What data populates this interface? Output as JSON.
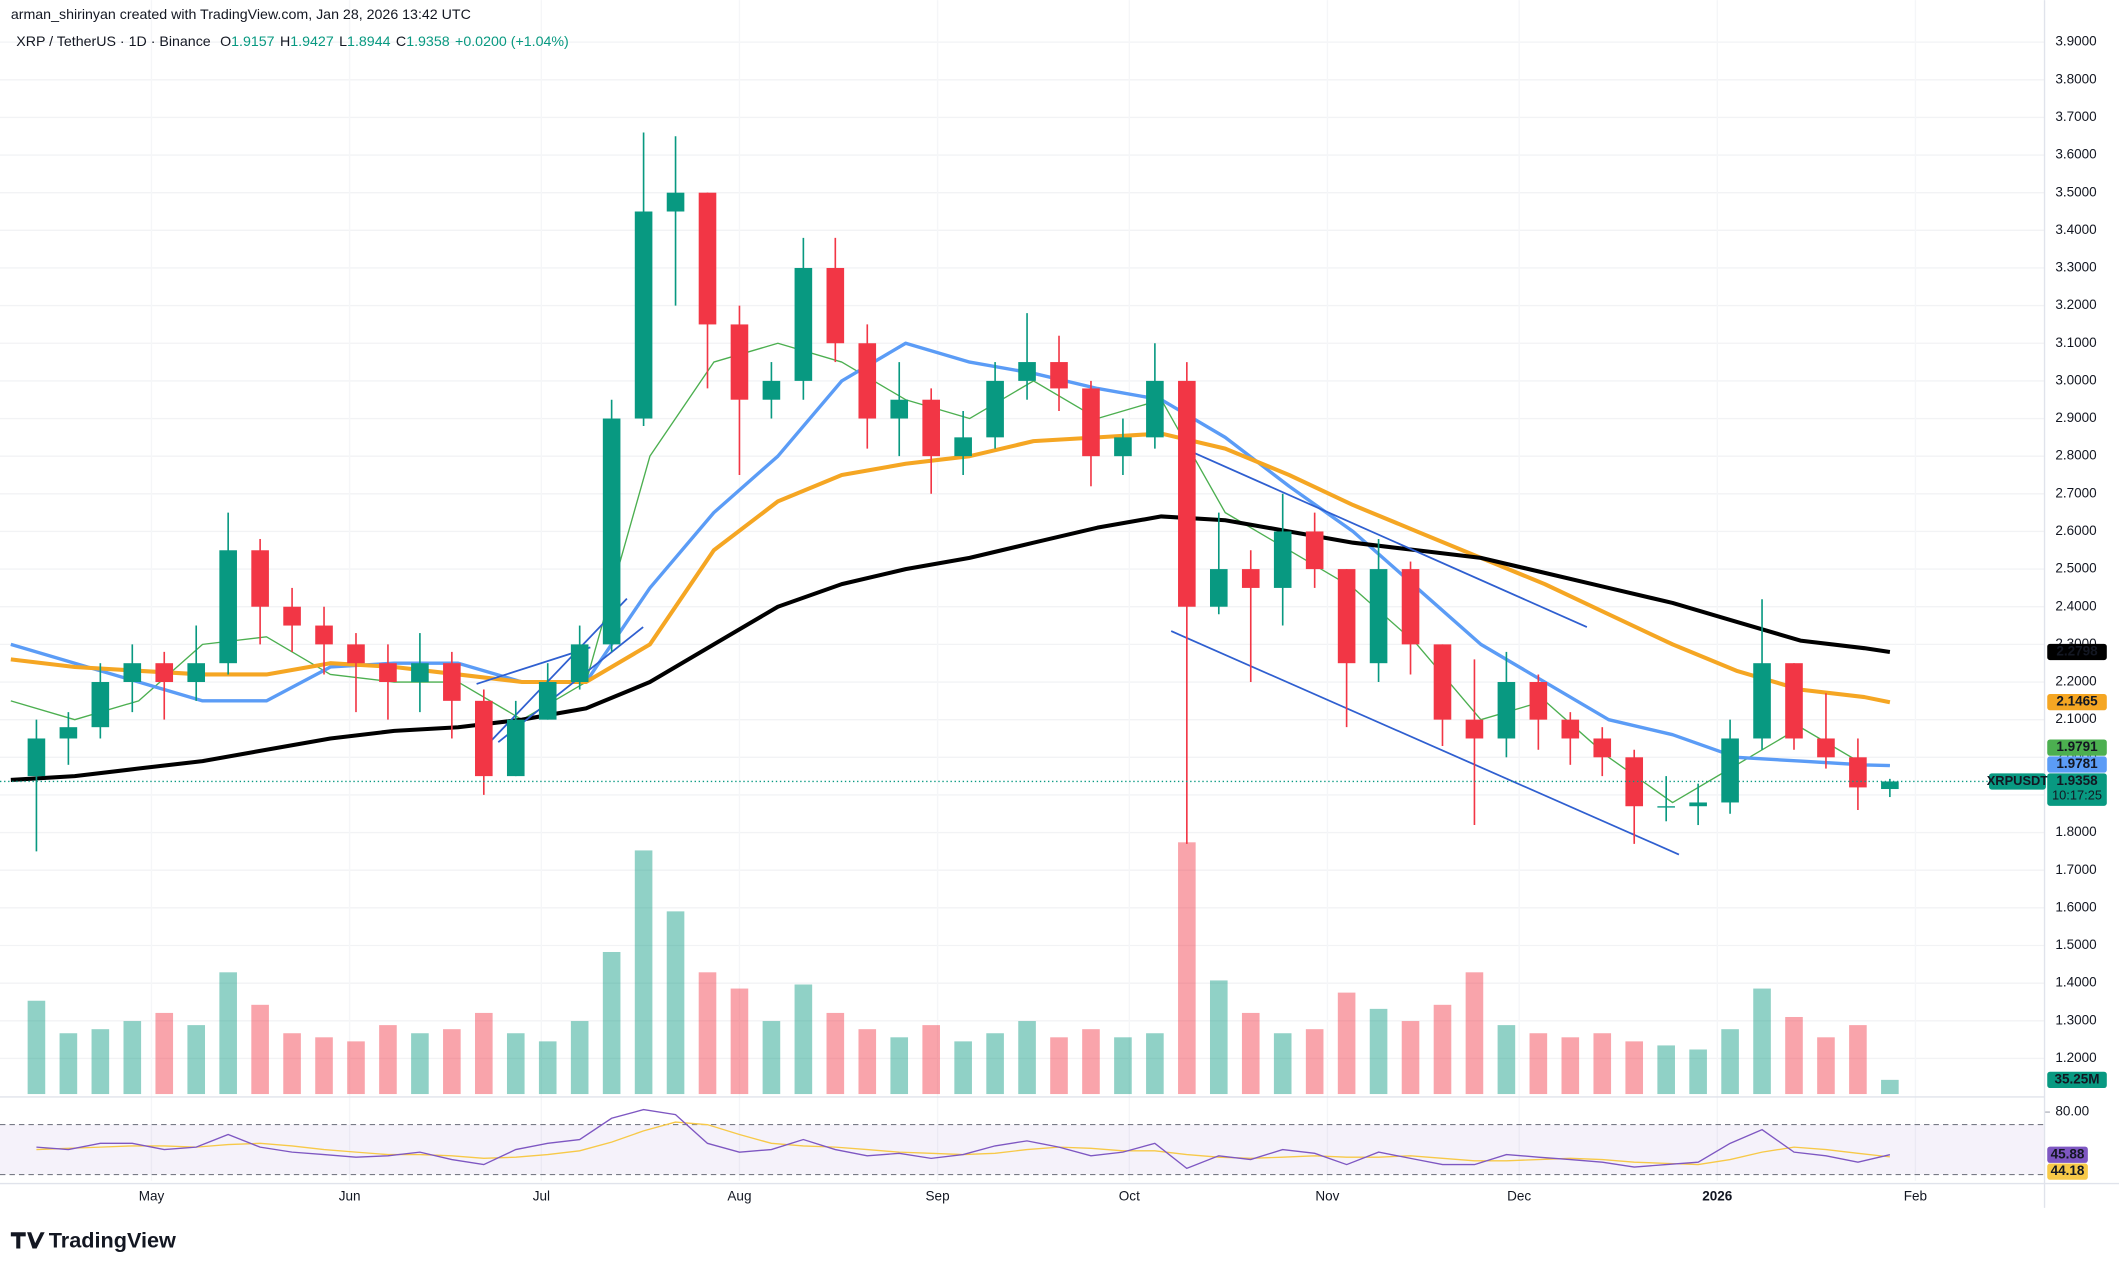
{
  "header": {
    "author_line": "arman_shirinyan created with TradingView.com, Jan 28, 2026 13:42 UTC",
    "symbol": "XRP / TetherUS · 1D · Binance",
    "ohlc": [
      {
        "label": "O",
        "value": 1.9157
      },
      {
        "label": "H",
        "value": 1.9427
      },
      {
        "label": "L",
        "value": 1.8944
      },
      {
        "label": "C",
        "value": 1.9358
      }
    ],
    "change": "+0.0200 (+1.04%)"
  },
  "chart_data": {
    "type": "candlestick",
    "grid": true,
    "up_color": "#089981",
    "down_color": "#f23645",
    "x": [
      4,
      9,
      14,
      19,
      24,
      29,
      34,
      39,
      44,
      49,
      54,
      59,
      64,
      69,
      74,
      79,
      84,
      89,
      94,
      99,
      104,
      109,
      114,
      119,
      124,
      129,
      134,
      139,
      144,
      149,
      154,
      159,
      164,
      169,
      174,
      179,
      184,
      189,
      194,
      199,
      204,
      209,
      214,
      219,
      224,
      229,
      234,
      239,
      244,
      249,
      254,
      259,
      264,
      269,
      274,
      279,
      284,
      289,
      294
    ],
    "xlim": [
      -1.7,
      318.2
    ],
    "xticks": [
      {
        "value": 22,
        "label": "May"
      },
      {
        "value": 53,
        "label": "Jun"
      },
      {
        "value": 83,
        "label": "Jul"
      },
      {
        "value": 114,
        "label": "Aug"
      },
      {
        "value": 145,
        "label": "Sep"
      },
      {
        "value": 175,
        "label": "Oct"
      },
      {
        "value": 206,
        "label": "Nov"
      },
      {
        "value": 236,
        "label": "Dec"
      },
      {
        "value": 267,
        "label": "2026"
      },
      {
        "value": 298,
        "label": "Feb"
      }
    ],
    "ylim": [
      1.105,
      4.0115
    ],
    "yticks": [
      {
        "value": 1.2,
        "label": "1.2000"
      },
      {
        "value": 1.3,
        "label": "1.3000"
      },
      {
        "value": 1.4,
        "label": "1.4000"
      },
      {
        "value": 1.5,
        "label": "1.5000"
      },
      {
        "value": 1.6,
        "label": "1.6000"
      },
      {
        "value": 1.7,
        "label": "1.7000"
      },
      {
        "value": 1.8,
        "label": "1.8000"
      },
      {
        "value": 1.9,
        "label": "1.9000"
      },
      {
        "value": 2.0,
        "label": "2.0000"
      },
      {
        "value": 2.1,
        "label": "2.1000"
      },
      {
        "value": 2.2,
        "label": "2.2000"
      },
      {
        "value": 2.3,
        "label": "2.3000"
      },
      {
        "value": 2.4,
        "label": "2.4000"
      },
      {
        "value": 2.5,
        "label": "2.5000"
      },
      {
        "value": 2.6,
        "label": "2.6000"
      },
      {
        "value": 2.7,
        "label": "2.7000"
      },
      {
        "value": 2.8,
        "label": "2.8000"
      },
      {
        "value": 2.9,
        "label": "2.9000"
      },
      {
        "value": 3.0,
        "label": "3.0000"
      },
      {
        "value": 3.1,
        "label": "3.1000"
      },
      {
        "value": 3.2,
        "label": "3.2000"
      },
      {
        "value": 3.3,
        "label": "3.3000"
      },
      {
        "value": 3.4,
        "label": "3.4000"
      },
      {
        "value": 3.5,
        "label": "3.5000"
      },
      {
        "value": 3.6,
        "label": "3.6000"
      },
      {
        "value": 3.7,
        "label": "3.7000"
      },
      {
        "value": 3.8,
        "label": "3.8000"
      },
      {
        "value": 3.9,
        "label": "3.9000"
      }
    ],
    "open": [
      1.95,
      2.05,
      2.08,
      2.2,
      2.25,
      2.2,
      2.25,
      2.55,
      2.4,
      2.35,
      2.3,
      2.25,
      2.2,
      2.25,
      2.15,
      1.95,
      2.1,
      2.2,
      2.3,
      2.9,
      3.45,
      3.5,
      3.15,
      2.95,
      3.0,
      3.3,
      3.1,
      2.9,
      2.95,
      2.8,
      2.85,
      3.0,
      3.05,
      2.98,
      2.8,
      2.85,
      3.0,
      2.4,
      2.5,
      2.45,
      2.6,
      2.5,
      2.25,
      2.5,
      2.3,
      2.1,
      2.05,
      2.2,
      2.1,
      2.05,
      2.0,
      1.87,
      1.87,
      1.88,
      2.05,
      2.25,
      2.05,
      2.0,
      1.9157
    ],
    "high": [
      2.1,
      2.12,
      2.25,
      2.3,
      2.28,
      2.35,
      2.65,
      2.58,
      2.45,
      2.4,
      2.33,
      2.3,
      2.33,
      2.28,
      2.18,
      2.15,
      2.25,
      2.35,
      2.95,
      3.66,
      3.65,
      3.5,
      3.2,
      3.05,
      3.38,
      3.38,
      3.15,
      3.05,
      2.98,
      2.92,
      3.05,
      3.18,
      3.12,
      3.0,
      2.9,
      3.1,
      3.05,
      2.65,
      2.55,
      2.7,
      2.65,
      2.5,
      2.58,
      2.52,
      2.3,
      2.26,
      2.28,
      2.22,
      2.12,
      2.08,
      2.02,
      1.95,
      1.93,
      2.1,
      2.42,
      2.25,
      2.17,
      2.05,
      1.9427
    ],
    "low": [
      1.75,
      1.98,
      2.05,
      2.12,
      2.1,
      2.15,
      2.22,
      2.3,
      2.28,
      2.22,
      2.12,
      2.1,
      2.12,
      2.05,
      1.9,
      1.95,
      2.1,
      2.18,
      2.28,
      2.88,
      3.2,
      2.98,
      2.75,
      2.9,
      2.95,
      3.05,
      2.82,
      2.8,
      2.7,
      2.75,
      2.82,
      2.95,
      2.92,
      2.72,
      2.75,
      2.82,
      1.77,
      2.38,
      2.2,
      2.35,
      2.45,
      2.08,
      2.2,
      2.22,
      2.03,
      1.82,
      2.0,
      2.02,
      1.98,
      1.95,
      1.77,
      1.83,
      1.82,
      1.85,
      2.02,
      2.02,
      1.97,
      1.86,
      1.8944
    ],
    "close": [
      2.05,
      2.08,
      2.2,
      2.25,
      2.2,
      2.25,
      2.55,
      2.4,
      2.35,
      2.3,
      2.25,
      2.2,
      2.25,
      2.15,
      1.95,
      2.1,
      2.2,
      2.3,
      2.9,
      3.45,
      3.5,
      3.15,
      2.95,
      3.0,
      3.3,
      3.1,
      2.9,
      2.95,
      2.8,
      2.85,
      3.0,
      3.05,
      2.98,
      2.8,
      2.85,
      3.0,
      2.4,
      2.5,
      2.45,
      2.6,
      2.5,
      2.25,
      2.5,
      2.3,
      2.1,
      2.05,
      2.2,
      2.1,
      2.05,
      2.0,
      1.87,
      1.87,
      1.88,
      2.05,
      2.25,
      2.05,
      2.0,
      1.92,
      1.9358
    ],
    "volume": {
      "ylim": [
        0,
        2693
      ],
      "up_color": "rgba(8,153,129,0.45)",
      "down_color": "rgba(242,54,69,0.45)",
      "label_color": "#089981",
      "values": [
        230,
        150,
        160,
        180,
        200,
        170,
        300,
        220,
        150,
        140,
        130,
        170,
        150,
        160,
        200,
        150,
        130,
        180,
        350,
        600,
        450,
        300,
        260,
        180,
        270,
        200,
        160,
        140,
        170,
        130,
        150,
        180,
        140,
        160,
        140,
        150,
        620,
        280,
        200,
        150,
        160,
        250,
        210,
        180,
        220,
        300,
        170,
        150,
        140,
        150,
        130,
        120,
        110,
        160,
        260,
        190,
        140,
        170,
        35.25
      ],
      "value_labels": [
        null,
        null,
        null,
        null,
        null,
        null,
        null,
        null,
        null,
        null,
        null,
        null,
        null,
        null,
        null,
        null,
        null,
        null,
        null,
        null,
        null,
        null,
        null,
        null,
        null,
        null,
        null,
        null,
        null,
        null,
        null,
        null,
        null,
        null,
        null,
        null,
        null,
        null,
        null,
        null,
        null,
        null,
        null,
        null,
        null,
        null,
        null,
        null,
        null,
        null,
        null,
        null,
        null,
        null,
        null,
        null,
        null,
        null,
        "35.25M"
      ]
    },
    "moving_averages": {
      "x": [
        0,
        10,
        20,
        30,
        40,
        50,
        60,
        70,
        80,
        90,
        100,
        110,
        120,
        130,
        140,
        150,
        160,
        170,
        180,
        190,
        200,
        210,
        220,
        230,
        240,
        250,
        260,
        270,
        280,
        290,
        294
      ],
      "series": [
        {
          "color": "#4caf50",
          "tag_text_color": "#ffffff",
          "width": 1,
          "values": [
            2.15,
            2.1,
            2.15,
            2.3,
            2.32,
            2.22,
            2.2,
            2.2,
            2.1,
            2.2,
            2.8,
            3.05,
            3.1,
            3.05,
            2.95,
            2.9,
            3.0,
            2.9,
            2.95,
            2.65,
            2.55,
            2.45,
            2.3,
            2.1,
            2.15,
            2.0,
            1.88,
            1.98,
            2.08,
            1.98,
            1.9791
          ]
        },
        {
          "color": "#5b9cf6",
          "tag_text_color": "#ffffff",
          "width": 2.5,
          "values": [
            2.3,
            2.25,
            2.2,
            2.15,
            2.15,
            2.24,
            2.25,
            2.25,
            2.2,
            2.2,
            2.45,
            2.65,
            2.8,
            3.0,
            3.1,
            3.05,
            3.02,
            2.98,
            2.95,
            2.85,
            2.72,
            2.6,
            2.45,
            2.3,
            2.2,
            2.1,
            2.06,
            2.0,
            1.99,
            1.98,
            1.9781
          ]
        },
        {
          "color": "#f5a623",
          "tag_text_color": "#131722",
          "width": 3,
          "values": [
            2.26,
            2.24,
            2.23,
            2.22,
            2.22,
            2.25,
            2.24,
            2.22,
            2.2,
            2.2,
            2.3,
            2.55,
            2.68,
            2.75,
            2.78,
            2.8,
            2.84,
            2.85,
            2.86,
            2.82,
            2.75,
            2.67,
            2.6,
            2.53,
            2.46,
            2.38,
            2.3,
            2.23,
            2.18,
            2.16,
            2.1465
          ]
        },
        {
          "color": "#000000",
          "tag_text_color": "#ffffff",
          "width": 3,
          "values": [
            1.94,
            1.95,
            1.97,
            1.99,
            2.02,
            2.05,
            2.07,
            2.08,
            2.1,
            2.13,
            2.2,
            2.3,
            2.4,
            2.46,
            2.5,
            2.53,
            2.57,
            2.61,
            2.64,
            2.63,
            2.6,
            2.57,
            2.55,
            2.53,
            2.49,
            2.45,
            2.41,
            2.36,
            2.31,
            2.29,
            2.2798
          ]
        }
      ]
    },
    "last_price": {
      "symbol": "XRPUSDT",
      "countdown": "10:17:25",
      "color": "#089981"
    },
    "rsi": {
      "color": "#7e57c2",
      "ylim": [
        25,
        90
      ],
      "yticks": [
        {
          "value": 80,
          "label": "80.00"
        }
      ],
      "bands": [
        30,
        70
      ],
      "values": [
        52,
        50,
        55,
        55,
        50,
        52,
        62,
        52,
        48,
        46,
        44,
        45,
        48,
        42,
        38,
        50,
        55,
        58,
        75,
        82,
        78,
        55,
        48,
        50,
        58,
        50,
        45,
        47,
        43,
        46,
        53,
        57,
        52,
        45,
        48,
        55,
        35,
        45,
        42,
        50,
        47,
        38,
        48,
        43,
        38,
        38,
        46,
        44,
        42,
        40,
        36,
        38,
        40,
        55,
        66,
        48,
        45,
        40,
        45.88
      ],
      "ma": {
        "color": "#f7c948",
        "values": [
          50,
          51,
          52,
          53,
          53,
          52,
          54,
          55,
          53,
          50,
          48,
          46,
          46,
          45,
          43,
          44,
          46,
          49,
          56,
          65,
          72,
          70,
          62,
          55,
          53,
          52,
          50,
          48,
          47,
          46,
          47,
          50,
          52,
          51,
          49,
          49,
          46,
          44,
          43,
          44,
          45,
          44,
          44,
          45,
          43,
          41,
          41,
          42,
          43,
          42,
          40,
          39,
          38,
          42,
          48,
          52,
          50,
          47,
          44.18
        ]
      }
    }
  },
  "footer": {
    "logo": "TradingView"
  }
}
